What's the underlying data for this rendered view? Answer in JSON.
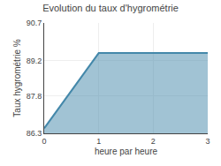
{
  "chart_data": {
    "type": "area",
    "title": "Evolution du taux d'hygrométrie",
    "xlabel": "heure par heure",
    "ylabel": "Taux hygrométrie %",
    "x": [
      0,
      1,
      3
    ],
    "values": [
      86.5,
      89.5,
      89.5
    ],
    "color": "#4488aa",
    "xlim": [
      0,
      3
    ],
    "ylim": [
      86.3,
      90.7
    ],
    "xticks": [
      0,
      1,
      2,
      3
    ],
    "yticks": [
      86.3,
      87.8,
      89.2,
      90.7
    ],
    "grid": true
  }
}
